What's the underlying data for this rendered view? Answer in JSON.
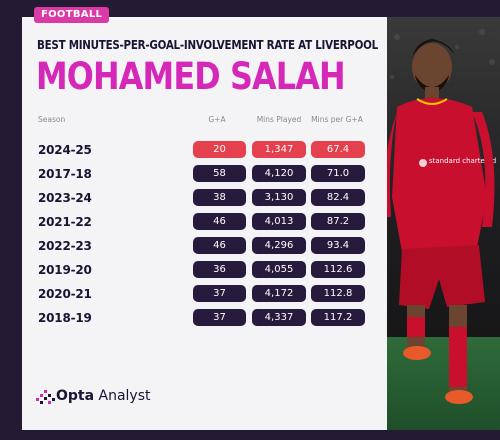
{
  "tag": "FOOTBALL",
  "subtitle": "BEST MINUTES-PER-GOAL-INVOLVEMENT RATE AT LIVERPOOL",
  "title": "MOHAMED SALAH",
  "headers": {
    "season": "Season",
    "ga": "G+A",
    "mins": "Mins Played",
    "mpg": "Mins per G+A"
  },
  "rows": [
    {
      "season": "2024-25",
      "ga": "20",
      "mins": "1,347",
      "mpg": "67.4",
      "highlight": true
    },
    {
      "season": "2017-18",
      "ga": "58",
      "mins": "4,120",
      "mpg": "71.0",
      "highlight": false
    },
    {
      "season": "2023-24",
      "ga": "38",
      "mins": "3,130",
      "mpg": "82.4",
      "highlight": false
    },
    {
      "season": "2021-22",
      "ga": "46",
      "mins": "4,013",
      "mpg": "87.2",
      "highlight": false
    },
    {
      "season": "2022-23",
      "ga": "46",
      "mins": "4,296",
      "mpg": "93.4",
      "highlight": false
    },
    {
      "season": "2019-20",
      "ga": "36",
      "mins": "4,055",
      "mpg": "112.6",
      "highlight": false
    },
    {
      "season": "2020-21",
      "ga": "37",
      "mins": "4,172",
      "mpg": "112.8",
      "highlight": false
    },
    {
      "season": "2018-19",
      "ga": "37",
      "mins": "4,337",
      "mpg": "117.2",
      "highlight": false
    }
  ],
  "logo": {
    "bold": "Opta",
    "light": " Analyst"
  },
  "shirt_sponsor": "standard chartered",
  "colors": {
    "accent": "#d628b8",
    "highlight": "#e4404e",
    "pill": "#261a3d",
    "tag": "#d93aa6"
  }
}
